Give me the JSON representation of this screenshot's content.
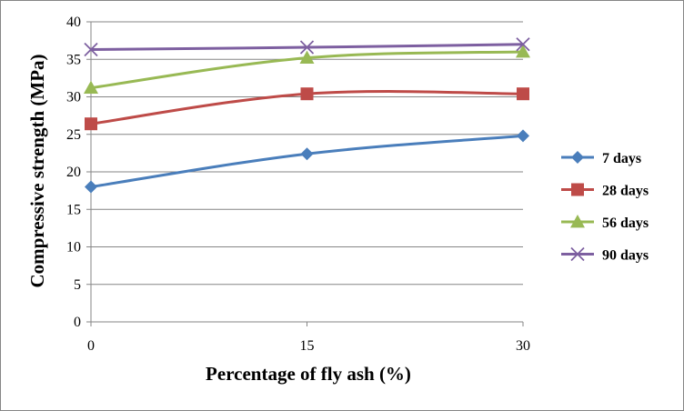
{
  "chart_data": {
    "type": "line",
    "title": "",
    "xlabel": "Percentage of fly ash (%)",
    "ylabel": "Compressive strength (MPa)",
    "x": [
      0,
      15,
      30
    ],
    "x_tick_labels": [
      "0",
      "15",
      "30"
    ],
    "ylim": [
      0,
      40
    ],
    "y_ticks": [
      0,
      5,
      10,
      15,
      20,
      25,
      30,
      35,
      40
    ],
    "grid": "horizontal",
    "legend_position": "right",
    "series": [
      {
        "name": "7 days",
        "values": [
          18.0,
          22.4,
          24.8
        ],
        "color": "#4a7ebb",
        "marker": "diamond"
      },
      {
        "name": "28 days",
        "values": [
          26.4,
          30.4,
          30.4
        ],
        "color": "#be4b48",
        "marker": "square"
      },
      {
        "name": "56 days",
        "values": [
          31.2,
          35.2,
          36.0
        ],
        "color": "#98b954",
        "marker": "triangle"
      },
      {
        "name": "90 days",
        "values": [
          36.3,
          36.6,
          37.0
        ],
        "color": "#7d5fa0",
        "marker": "x"
      }
    ]
  }
}
